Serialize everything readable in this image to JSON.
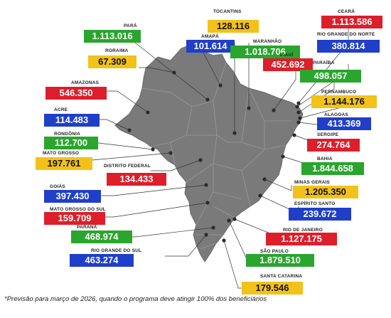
{
  "colors": {
    "green": "#2aa52e",
    "blue": "#1f3fc8",
    "red": "#dc1f2b",
    "yellow": "#f2c21a",
    "map": "#7a7a7a",
    "border": "#9a9a9a",
    "dot": "#2b2b2b",
    "line": "#333333"
  },
  "states": [
    {
      "id": "para",
      "name": "PARÁ",
      "value": "1.113.016",
      "color": "green"
    },
    {
      "id": "amapa",
      "name": "AMAPÁ",
      "value": "101.614",
      "color": "blue"
    },
    {
      "id": "tocantins",
      "name": "TOCANTINS",
      "value": "128.116",
      "color": "yellow"
    },
    {
      "id": "ceara",
      "name": "CEARÁ",
      "value": "1.113.586",
      "color": "red"
    },
    {
      "id": "rn",
      "name": "RIO GRANDE DO NORTE",
      "value": "380.814",
      "color": "blue"
    },
    {
      "id": "roraima",
      "name": "RORAIMA",
      "value": "67.309",
      "color": "yellow"
    },
    {
      "id": "maranhao",
      "name": "MARANHÃO",
      "value": "1.018.706",
      "color": "green"
    },
    {
      "id": "piaui",
      "name": "PIAUÍ",
      "value": "452.692",
      "color": "red"
    },
    {
      "id": "paraiba",
      "name": "PARAÍBA",
      "value": "498.057",
      "color": "green"
    },
    {
      "id": "amazonas",
      "name": "AMAZONAS",
      "value": "546.350",
      "color": "red"
    },
    {
      "id": "pernambuco",
      "name": "PERNAMBUCO",
      "value": "1.144.176",
      "color": "yellow"
    },
    {
      "id": "acre",
      "name": "ACRE",
      "value": "114.483",
      "color": "blue"
    },
    {
      "id": "alagoas",
      "name": "ALAGOAS",
      "value": "413.369",
      "color": "blue"
    },
    {
      "id": "rondonia",
      "name": "RONDÔNIA",
      "value": "112.700",
      "color": "green"
    },
    {
      "id": "sergipe",
      "name": "SERGIPE",
      "value": "274.764",
      "color": "red"
    },
    {
      "id": "mt",
      "name": "MATO GROSSO",
      "value": "197.761",
      "color": "yellow"
    },
    {
      "id": "bahia",
      "name": "BAHIA",
      "value": "1.844.658",
      "color": "green"
    },
    {
      "id": "df",
      "name": "DISTRITO FEDERAL",
      "value": "134.433",
      "color": "red"
    },
    {
      "id": "mg",
      "name": "MINAS GERAIS",
      "value": "1.205.350",
      "color": "yellow"
    },
    {
      "id": "goias",
      "name": "GOIÁS",
      "value": "397.430",
      "color": "blue"
    },
    {
      "id": "es",
      "name": "ESPÍRITO SANTO",
      "value": "239.672",
      "color": "blue"
    },
    {
      "id": "ms",
      "name": "MATO GROSSO DO SUL",
      "value": "159.709",
      "color": "red"
    },
    {
      "id": "rj",
      "name": "RIO DE JANEIRO",
      "value": "1.127.175",
      "color": "red"
    },
    {
      "id": "parana",
      "name": "PARANÁ",
      "value": "468.974",
      "color": "green"
    },
    {
      "id": "rs",
      "name": "RIO GRANDE DO SUL",
      "value": "463.274",
      "color": "blue"
    },
    {
      "id": "sp",
      "name": "SÃO PAULO",
      "value": "1.879.510",
      "color": "green"
    },
    {
      "id": "sc",
      "name": "SANTA CATARINA",
      "value": "179.546",
      "color": "yellow"
    }
  ],
  "footnote": "*Previsão para março de 2026, quando o programa deve atingir 100% dos beneficiários"
}
